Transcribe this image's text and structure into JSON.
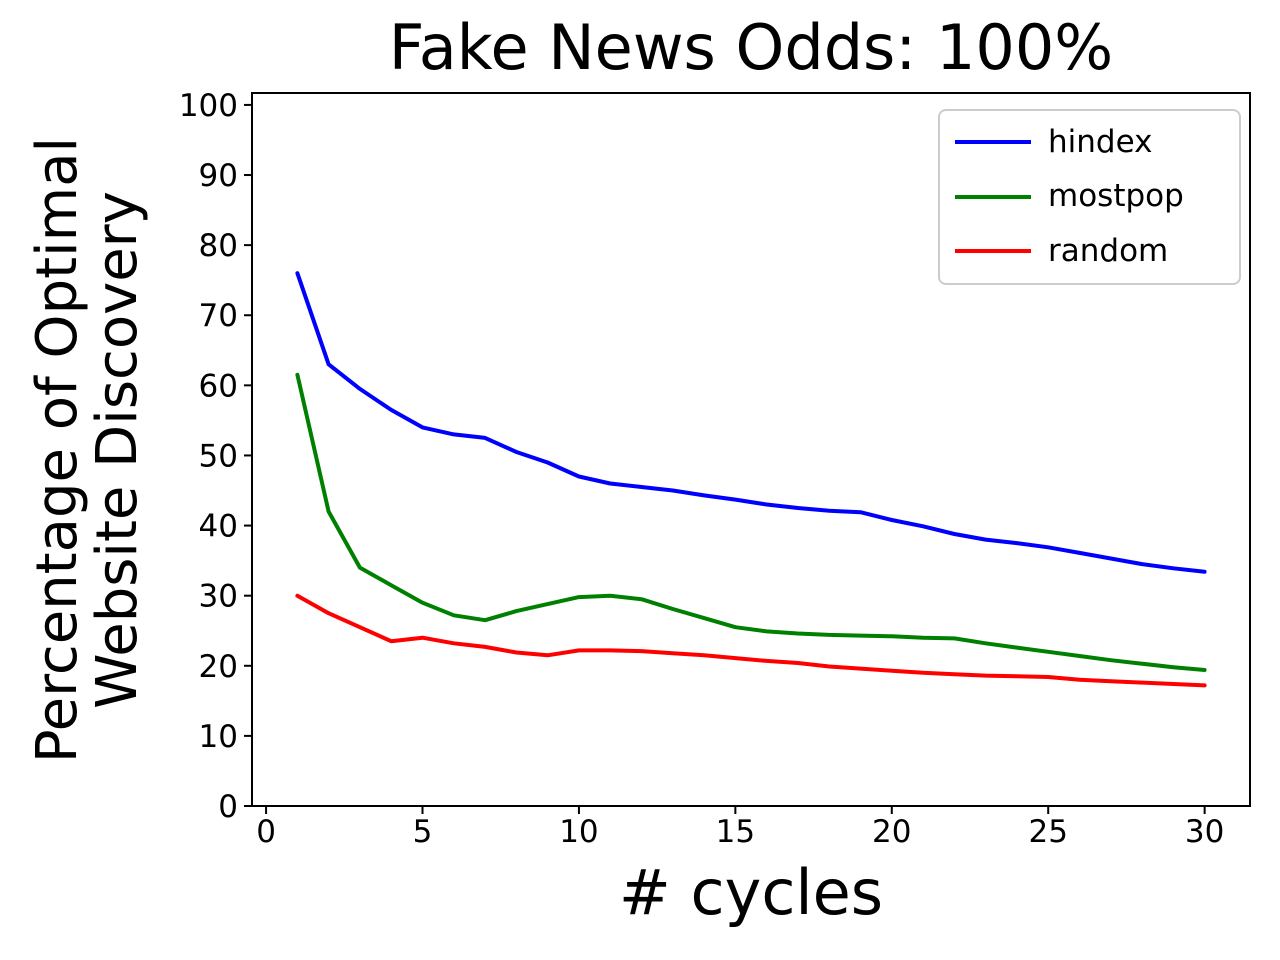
{
  "figure": {
    "background": "#ffffff"
  },
  "chart_data": {
    "type": "line",
    "title": "Fake News Odds: 100%",
    "xlabel": "# cycles",
    "ylabel": "Percentage of Optimal\nWebsite Discovery",
    "ylabel_lines": [
      "Percentage of Optimal",
      "Website Discovery"
    ],
    "x": [
      1,
      2,
      3,
      4,
      5,
      6,
      7,
      8,
      9,
      10,
      11,
      12,
      13,
      14,
      15,
      16,
      17,
      18,
      19,
      20,
      21,
      22,
      23,
      24,
      25,
      26,
      27,
      28,
      29,
      30
    ],
    "series": [
      {
        "name": "hindex",
        "color": "#0000ff",
        "values": [
          76,
          63,
          59.5,
          56.5,
          54,
          53,
          52.5,
          50.5,
          49,
          47,
          46,
          45.5,
          45,
          44.3,
          43.7,
          43,
          42.5,
          42.1,
          41.9,
          40.8,
          39.9,
          38.8,
          38,
          37.5,
          36.9,
          36.1,
          35.3,
          34.5,
          33.9,
          33.4
        ]
      },
      {
        "name": "mostpop",
        "color": "#008000",
        "values": [
          61.5,
          42,
          34,
          31.5,
          29,
          27.2,
          26.5,
          27.8,
          28.8,
          29.8,
          30,
          29.5,
          28.1,
          26.8,
          25.5,
          24.9,
          24.6,
          24.4,
          24.3,
          24.2,
          24,
          23.9,
          23.2,
          22.6,
          22,
          21.4,
          20.8,
          20.3,
          19.8,
          19.4
        ]
      },
      {
        "name": "random",
        "color": "#ff0000",
        "values": [
          30,
          27.5,
          25.5,
          23.5,
          24,
          23.2,
          22.7,
          21.9,
          21.5,
          22.2,
          22.2,
          22.1,
          21.8,
          21.5,
          21.1,
          20.7,
          20.4,
          19.9,
          19.6,
          19.3,
          19,
          18.8,
          18.6,
          18.5,
          18.4,
          18,
          17.8,
          17.6,
          17.4,
          17.2
        ]
      }
    ],
    "x_ticks": [
      0,
      5,
      10,
      15,
      20,
      25,
      30
    ],
    "y_ticks": [
      0,
      10,
      20,
      30,
      40,
      50,
      60,
      70,
      80,
      90,
      100
    ],
    "xlim": [
      -0.45,
      31.45
    ],
    "ylim": [
      0,
      101.7
    ],
    "grid": false,
    "legend_position": "upper right",
    "axes_color": "#000000",
    "legend_border_color": "#cccccc"
  }
}
